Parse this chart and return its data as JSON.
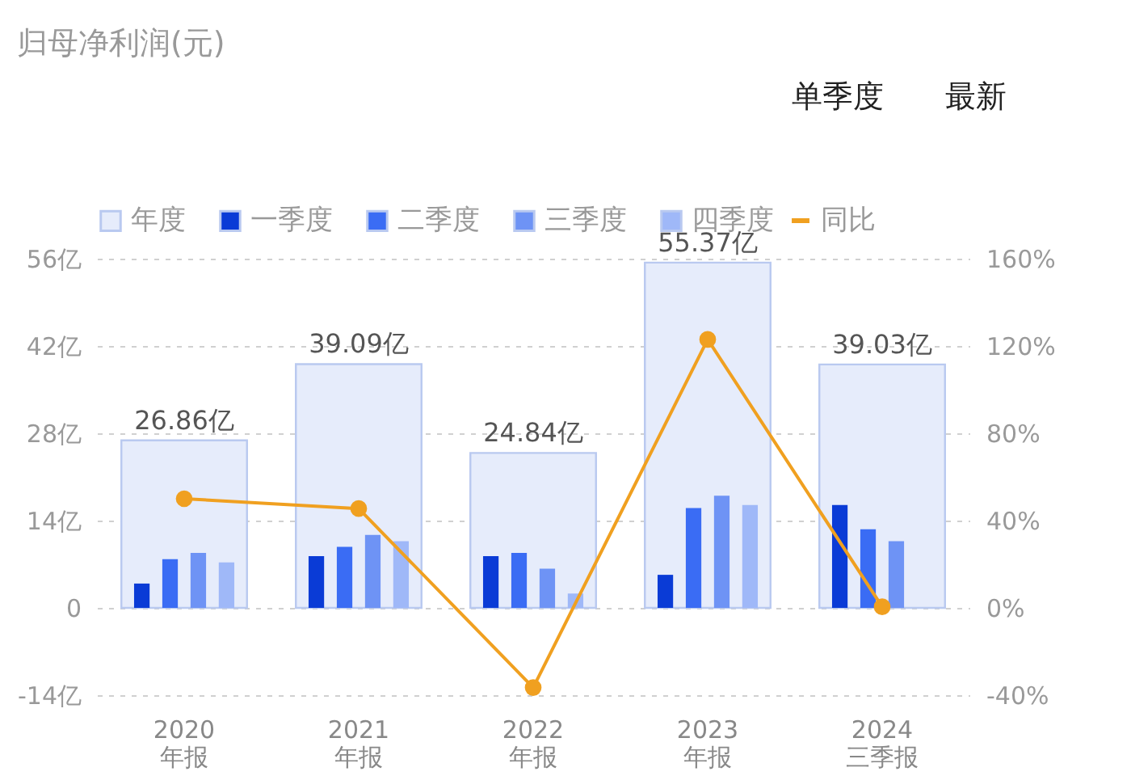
{
  "chart_data": {
    "type": "bar",
    "title": "归母净利润(元)",
    "categories": [
      "2020\n年报",
      "2021\n年报",
      "2022\n年报",
      "2023\n年报",
      "2024\n三季报"
    ],
    "series": [
      {
        "name": "年度",
        "color": "#e6ecfb",
        "values": [
          26.86,
          39.09,
          24.84,
          55.37,
          39.03
        ],
        "value_labels": [
          "26.86亿",
          "39.09亿",
          "24.84亿",
          "55.37亿",
          "39.03亿"
        ]
      },
      {
        "name": "一季度",
        "color": "#0a3bd6",
        "values": [
          3.9,
          8.3,
          8.3,
          5.3,
          16.5
        ]
      },
      {
        "name": "二季度",
        "color": "#3a6cf4",
        "values": [
          7.8,
          9.8,
          8.8,
          16.0,
          12.6
        ]
      },
      {
        "name": "三季度",
        "color": "#6e93f5",
        "values": [
          8.8,
          11.7,
          6.3,
          18.0,
          10.7
        ]
      },
      {
        "name": "四季度",
        "color": "#9fb8f8",
        "values": [
          7.3,
          10.7,
          2.3,
          16.5,
          null
        ]
      },
      {
        "name": "同比",
        "type": "line",
        "axis": "y2",
        "color": "#f0a020",
        "values": [
          50,
          45.5,
          -36.5,
          123,
          0.5
        ]
      }
    ],
    "ylim": [
      -14,
      56
    ],
    "yticks": [
      {
        "value": -14,
        "label": "-14亿"
      },
      0,
      {
        "value": 14,
        "label": "14亿"
      },
      {
        "value": 28,
        "label": "28亿"
      },
      {
        "value": 42,
        "label": "42亿"
      },
      {
        "value": 56,
        "label": "56亿"
      }
    ],
    "y2lim": [
      -40,
      160
    ],
    "y2ticks": [
      {
        "value": -40,
        "label": "-40%"
      },
      {
        "value": 0,
        "label": "0%"
      },
      {
        "value": 40,
        "label": "40%"
      },
      {
        "value": 80,
        "label": "80%"
      },
      {
        "value": 120,
        "label": "120%"
      },
      {
        "value": 160,
        "label": "160%"
      }
    ],
    "grid": "y",
    "legend": "top",
    "marker": "circle",
    "annotations": [
      "单季度",
      "最新"
    ]
  }
}
